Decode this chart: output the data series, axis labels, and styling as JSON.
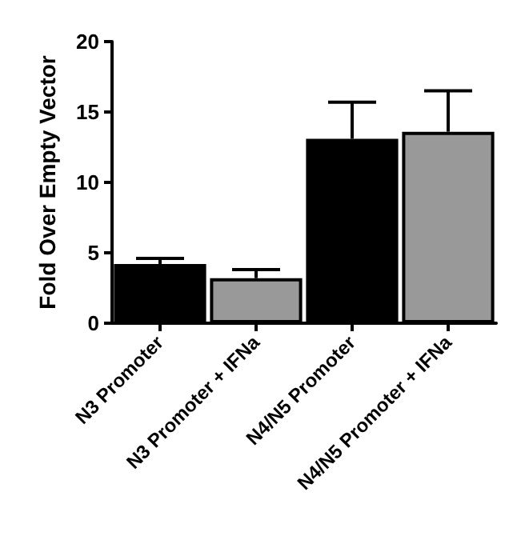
{
  "chart_data": {
    "type": "bar",
    "ylabel": "Fold Over Empty Vector",
    "categories": [
      "N3 Promoter",
      "N3 Promoter + IFNa",
      "N4/N5 Promoter",
      "N4/N5 Promoter + IFNa"
    ],
    "values": [
      4.2,
      3.2,
      13.1,
      13.6
    ],
    "colors": [
      "#000000",
      "#999999",
      "#000000",
      "#999999"
    ],
    "errors": [
      [
        4.2,
        4.6
      ],
      [
        3.2,
        3.8
      ],
      [
        13.1,
        15.7
      ],
      [
        13.6,
        16.5
      ]
    ],
    "ylim": [
      0,
      20
    ],
    "yticks": [
      0,
      5,
      10,
      15,
      20
    ],
    "grid": false
  }
}
